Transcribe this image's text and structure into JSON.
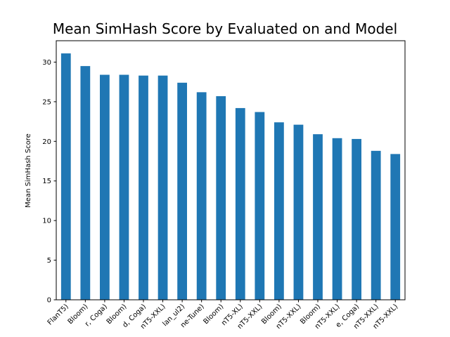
{
  "colors": {
    "bar": "#1f77b4",
    "axis": "#000000",
    "background": "#ffffff"
  },
  "chart_data": {
    "type": "bar",
    "title": "Mean SimHash Score by Evaluated on and Model",
    "xlabel": "",
    "ylabel": "Mean SimHash Score",
    "ylim": [
      0,
      32.7
    ],
    "yticks": [
      0,
      5,
      10,
      15,
      20,
      25,
      30
    ],
    "grid": false,
    "categories": [
      "FlanT5)",
      "Bloom)",
      "r, Coga)",
      "Bloom)",
      "d, Coga)",
      "nT5-XXL)",
      "lan_ul2)",
      "ne-Tune)",
      "Bloom)",
      "nT5-XL)",
      "nT5-XXL)",
      "Bloom)",
      "nT5-XXL)",
      "Bloom)",
      "nT5-XXL)",
      "e, Coga)",
      "nT5-XXL)",
      "nT5-XXL)"
    ],
    "values": [
      31.1,
      29.5,
      28.4,
      28.4,
      28.3,
      28.3,
      27.4,
      26.2,
      25.7,
      24.2,
      23.7,
      22.4,
      22.1,
      20.9,
      20.4,
      20.3,
      18.8,
      18.4
    ]
  }
}
